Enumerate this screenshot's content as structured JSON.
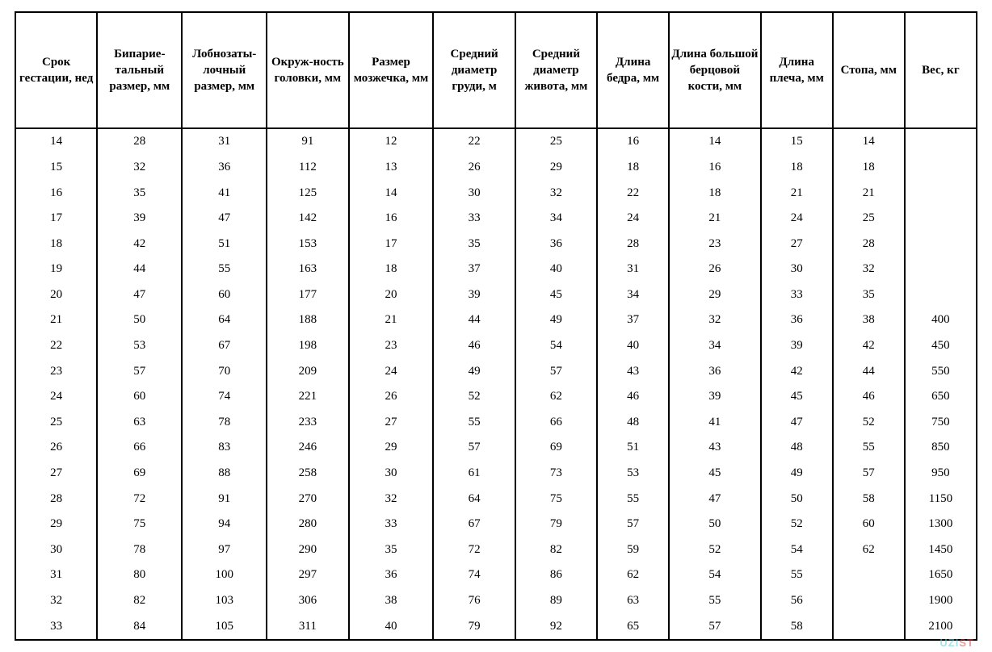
{
  "type": "table",
  "background_color": "#ffffff",
  "border_color": "#000000",
  "text_color": "#000000",
  "font_family": "Times New Roman",
  "header_fontsize_pt": 11,
  "body_fontsize_pt": 11,
  "header_font_weight": "bold",
  "column_widths_pct": [
    8.3,
    8.6,
    8.6,
    8.3,
    8.6,
    8.3,
    8.3,
    7.3,
    9.3,
    7.3,
    7.3,
    7.3
  ],
  "columns": [
    "Срок гестации, нед",
    "Бипарие-тальный размер, мм",
    "Лобнозаты-лочный размер, мм",
    "Окруж-ность головки, мм",
    "Размер мозжечка, мм",
    "Средний диаметр груди, м",
    "Средний диаметр живота, мм",
    "Длина бедра, мм",
    "Длина большой берцовой кости, мм",
    "Длина плеча, мм",
    "Стопа, мм",
    "Вес, кг"
  ],
  "rows": [
    [
      "14",
      "28",
      "31",
      "91",
      "12",
      "22",
      "25",
      "16",
      "14",
      "15",
      "14",
      ""
    ],
    [
      "15",
      "32",
      "36",
      "112",
      "13",
      "26",
      "29",
      "18",
      "16",
      "18",
      "18",
      ""
    ],
    [
      "16",
      "35",
      "41",
      "125",
      "14",
      "30",
      "32",
      "22",
      "18",
      "21",
      "21",
      ""
    ],
    [
      "17",
      "39",
      "47",
      "142",
      "16",
      "33",
      "34",
      "24",
      "21",
      "24",
      "25",
      ""
    ],
    [
      "18",
      "42",
      "51",
      "153",
      "17",
      "35",
      "36",
      "28",
      "23",
      "27",
      "28",
      ""
    ],
    [
      "19",
      "44",
      "55",
      "163",
      "18",
      "37",
      "40",
      "31",
      "26",
      "30",
      "32",
      ""
    ],
    [
      "20",
      "47",
      "60",
      "177",
      "20",
      "39",
      "45",
      "34",
      "29",
      "33",
      "35",
      ""
    ],
    [
      "21",
      "50",
      "64",
      "188",
      "21",
      "44",
      "49",
      "37",
      "32",
      "36",
      "38",
      "400"
    ],
    [
      "22",
      "53",
      "67",
      "198",
      "23",
      "46",
      "54",
      "40",
      "34",
      "39",
      "42",
      "450"
    ],
    [
      "23",
      "57",
      "70",
      "209",
      "24",
      "49",
      "57",
      "43",
      "36",
      "42",
      "44",
      "550"
    ],
    [
      "24",
      "60",
      "74",
      "221",
      "26",
      "52",
      "62",
      "46",
      "39",
      "45",
      "46",
      "650"
    ],
    [
      "25",
      "63",
      "78",
      "233",
      "27",
      "55",
      "66",
      "48",
      "41",
      "47",
      "52",
      "750"
    ],
    [
      "26",
      "66",
      "83",
      "246",
      "29",
      "57",
      "69",
      "51",
      "43",
      "48",
      "55",
      "850"
    ],
    [
      "27",
      "69",
      "88",
      "258",
      "30",
      "61",
      "73",
      "53",
      "45",
      "49",
      "57",
      "950"
    ],
    [
      "28",
      "72",
      "91",
      "270",
      "32",
      "64",
      "75",
      "55",
      "47",
      "50",
      "58",
      "1150"
    ],
    [
      "29",
      "75",
      "94",
      "280",
      "33",
      "67",
      "79",
      "57",
      "50",
      "52",
      "60",
      "1300"
    ],
    [
      "30",
      "78",
      "97",
      "290",
      "35",
      "72",
      "82",
      "59",
      "52",
      "54",
      "62",
      "1450"
    ],
    [
      "31",
      "80",
      "100",
      "297",
      "36",
      "74",
      "86",
      "62",
      "54",
      "55",
      "",
      "1650"
    ],
    [
      "32",
      "82",
      "103",
      "306",
      "38",
      "76",
      "89",
      "63",
      "55",
      "56",
      "",
      "1900"
    ],
    [
      "33",
      "84",
      "105",
      "311",
      "40",
      "79",
      "92",
      "65",
      "57",
      "58",
      "",
      "2100"
    ]
  ],
  "watermark": {
    "part1": "UZI",
    "part2": "ST"
  }
}
